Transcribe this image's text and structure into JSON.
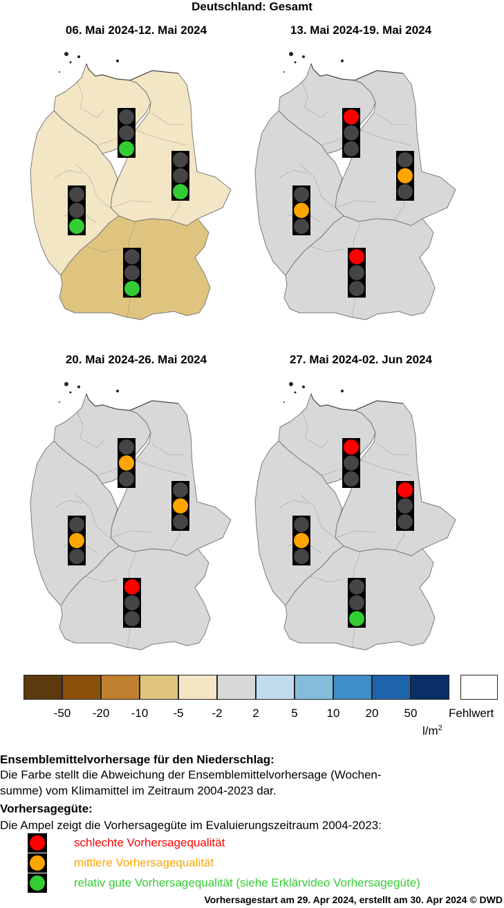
{
  "header": {
    "title": "Deutschland: Gesamt"
  },
  "colors": {
    "red": "#ff0000",
    "orange": "#ffa500",
    "green": "#33cc33",
    "off": "#454545",
    "gray_fill": "#d8d8d8",
    "light_tan": "#f3e6c4",
    "mid_tan": "#dfc47f",
    "border": "#7a7a7a",
    "region_line": "#7a7a7a"
  },
  "maps": [
    {
      "title": "06. Mai 2024-12. Mai 2024",
      "region_colors": {
        "north": "light_tan",
        "east": "light_tan",
        "west": "light_tan",
        "south": "mid_tan"
      },
      "lights": {
        "north": "green",
        "east": "green",
        "west": "green",
        "south": "green"
      }
    },
    {
      "title": "13. Mai 2024-19. Mai 2024",
      "region_colors": {
        "north": "gray_fill",
        "east": "gray_fill",
        "west": "gray_fill",
        "south": "gray_fill"
      },
      "lights": {
        "north": "red",
        "east": "orange",
        "west": "orange",
        "south": "red"
      }
    },
    {
      "title": "20. Mai 2024-26. Mai 2024",
      "region_colors": {
        "north": "gray_fill",
        "east": "gray_fill",
        "west": "gray_fill",
        "south": "gray_fill"
      },
      "lights": {
        "north": "orange",
        "east": "orange",
        "west": "orange",
        "south": "red"
      }
    },
    {
      "title": "27. Mai 2024-02. Jun 2024",
      "region_colors": {
        "north": "gray_fill",
        "east": "gray_fill",
        "west": "gray_fill",
        "south": "gray_fill"
      },
      "lights": {
        "north": "red",
        "east": "red",
        "west": "orange",
        "south": "green"
      }
    }
  ],
  "legend": {
    "colors": [
      "#5c3a0e",
      "#8b4f0c",
      "#be7f2f",
      "#dfc47f",
      "#f3e6c4",
      "#d8d8d8",
      "#c1dced",
      "#85bcdc",
      "#3f8ec8",
      "#1e64ad",
      "#092f66"
    ],
    "missing_color": "#ffffff",
    "ticks": [
      "-50",
      "-20",
      "-10",
      "-5",
      "-2",
      "2",
      "5",
      "10",
      "20",
      "50"
    ],
    "missing_label": "Fehlwert",
    "unit": "l/m",
    "unit_sup": "2"
  },
  "description": {
    "heading1": "Ensemblemittelvorhersage für den Niederschlag:",
    "line1": "Die Farbe stellt die Abweichung der Ensemblemittelvorhersage (Wochen-",
    "line2": "summe) vom Klimamittel im Zeitraum 2004-2023 dar.",
    "heading2": "Vorhersagegüte:",
    "line3": "Die Ampel zeigt die Vorhersagegüte im Evaluierungszeitraum 2004-2023:"
  },
  "quality_key": [
    {
      "color": "#ff0000",
      "label": "schlechte Vorhersagequalität"
    },
    {
      "color": "#ffa500",
      "label": "mittlere Vorhersagequalität"
    },
    {
      "color": "#33cc33",
      "label": "relativ gute Vorhersagequalität (siehe Erklärvideo Vorhersagegüte)"
    }
  ],
  "footer": {
    "text": "Vorhersagestart am 29. Apr 2024, erstellt am 30. Apr 2024 © DWD"
  }
}
